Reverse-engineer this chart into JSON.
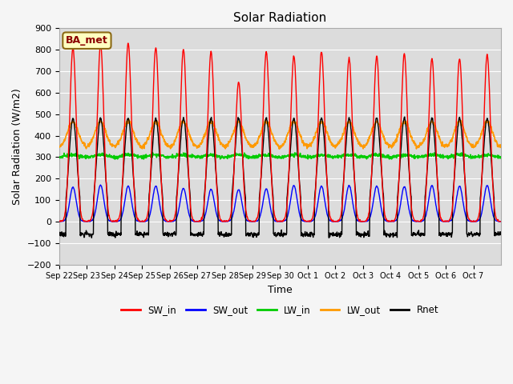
{
  "title": "Solar Radiation",
  "xlabel": "Time",
  "ylabel": "Solar Radiation (W/m2)",
  "ylim": [
    -200,
    900
  ],
  "annotation": "BA_met",
  "bg_color": "#dcdcdc",
  "grid_color": "#ffffff",
  "legend": [
    "SW_in",
    "SW_out",
    "LW_in",
    "LW_out",
    "Rnet"
  ],
  "colors": {
    "SW_in": "#ff0000",
    "SW_out": "#0000ff",
    "LW_in": "#00cc00",
    "LW_out": "#ff9900",
    "Rnet": "#000000"
  },
  "line_widths": {
    "SW_in": 1.0,
    "SW_out": 1.0,
    "LW_in": 1.2,
    "LW_out": 1.2,
    "Rnet": 1.0
  },
  "x_tick_labels": [
    "Sep 22",
    "Sep 23",
    "Sep 24",
    "Sep 25",
    "Sep 26",
    "Sep 27",
    "Sep 28",
    "Sep 29",
    "Sep 30",
    "Oct 1",
    "Oct 2",
    "Oct 3",
    "Oct 4",
    "Oct 5",
    "Oct 6",
    "Oct 7"
  ],
  "num_days": 16,
  "time_step": 0.25,
  "sw_in_peaks": [
    810,
    825,
    830,
    810,
    800,
    790,
    650,
    790,
    770,
    790,
    760,
    770,
    780,
    760,
    760,
    775
  ],
  "sw_out_peaks": [
    160,
    170,
    165,
    165,
    155,
    150,
    148,
    152,
    168,
    165,
    168,
    165,
    162,
    167,
    165,
    168
  ],
  "lw_in_base": 305,
  "lw_out_base": 345,
  "rnet_night": -60
}
